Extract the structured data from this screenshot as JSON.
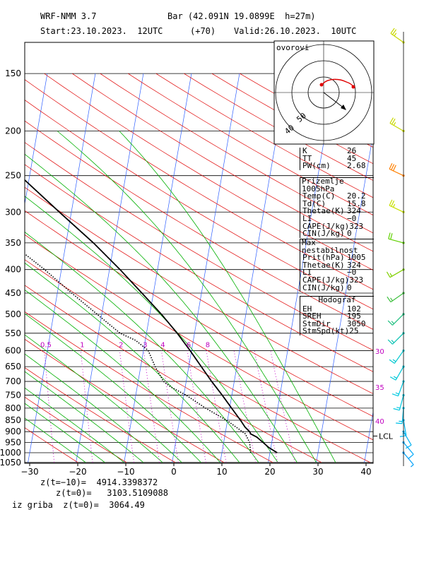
{
  "header": {
    "model": "WRF-NMM 3.7",
    "location": "Bar (42.091N 19.0899E  h=27m)",
    "start": "Start:23.10.2023.  12UTC",
    "lead": "(+70)",
    "valid": "Valid:26.10.2023.  10UTC"
  },
  "footer": {
    "z_m10": "z(t=−10)=  4914.3398372",
    "z_0": "z(t=0)=   3103.5109088",
    "z_grib": "iz griba  z(t=0)=  3064.49"
  },
  "hodograph": {
    "label": "ovorovi",
    "ring_labels": [
      "40",
      "50"
    ]
  },
  "indices": [
    {
      "k": "K",
      "v": "26"
    },
    {
      "k": "TT",
      "v": "45"
    },
    {
      "k": "PW(cm)",
      "v": "2.68"
    }
  ],
  "surface": {
    "title": "Prizemlje 1005hPa",
    "rows": [
      {
        "k": "Temp(C)",
        "v": "20.2"
      },
      {
        "k": "Td(C)",
        "v": "15.8"
      },
      {
        "k": "Thetae(K)",
        "v": "324"
      },
      {
        "k": "LI",
        "v": "−0"
      },
      {
        "k": "CAPE(J/kg)",
        "v": "323"
      },
      {
        "k": "CIN(J/kg)",
        "v": "0"
      }
    ]
  },
  "max_unstable": {
    "title": "Max nestabilnost",
    "rows": [
      {
        "k": "Prit(hPa)",
        "v": "1005"
      },
      {
        "k": "Thetae(K)",
        "v": "324"
      },
      {
        "k": "LI",
        "v": "−0"
      },
      {
        "k": "CAPE(J/kg)",
        "v": "323"
      },
      {
        "k": "CIN(J/kg)",
        "v": "0"
      }
    ]
  },
  "hodograf": {
    "title": "Hodograf",
    "rows": [
      {
        "k": "EH",
        "v": "102"
      },
      {
        "k": "SREH",
        "v": "195"
      },
      {
        "k": "StmDir",
        "v": "3050"
      },
      {
        "k": "StmSpd(kt)",
        "v": "25"
      }
    ]
  },
  "chart_data": {
    "type": "line",
    "subtype": "skew-T log-P diagram",
    "x_ticks": [
      "−30",
      "−20",
      "−10",
      "0",
      "10",
      "20",
      "30",
      "40"
    ],
    "xlim": [
      -30,
      42
    ],
    "y_ticks": [
      "150",
      "200",
      "250",
      "300",
      "350",
      "400",
      "450",
      "500",
      "550",
      "600",
      "650",
      "700",
      "750",
      "800",
      "850",
      "900",
      "950",
      "1000",
      "1050"
    ],
    "ylim": [
      1050,
      150
    ],
    "mixing_ratio_labels": [
      "0.5",
      "1",
      "2",
      "3",
      "4",
      "6",
      "8"
    ],
    "kt_labels": [
      "30",
      "35",
      "40"
    ],
    "lcl_label": "LCL",
    "lcl_p": 920,
    "series": [
      {
        "color": "#000000",
        "style": "solid",
        "points": [
          [
            1000,
            21.5
          ],
          [
            975,
            19.6
          ],
          [
            950,
            18.2
          ],
          [
            925,
            16.7
          ],
          [
            910,
            15.3
          ],
          [
            900,
            15.0
          ],
          [
            880,
            13.9
          ],
          [
            850,
            12.7
          ],
          [
            800,
            10.4
          ],
          [
            750,
            8.0
          ],
          [
            700,
            5.3
          ],
          [
            650,
            2.6
          ],
          [
            600,
            -0.3
          ],
          [
            550,
            -3.6
          ],
          [
            500,
            -7.6
          ],
          [
            450,
            -12.4
          ],
          [
            400,
            -17.8
          ],
          [
            350,
            -24.3
          ],
          [
            300,
            -32.5
          ],
          [
            250,
            -42.0
          ],
          [
            200,
            -52.5
          ],
          [
            150,
            -57.5
          ]
        ]
      },
      {
        "color": "#000000",
        "style": "dotted",
        "points": [
          [
            1000,
            16.0
          ],
          [
            950,
            15.4
          ],
          [
            910,
            14.2
          ],
          [
            900,
            13.5
          ],
          [
            850,
            9.8
          ],
          [
            800,
            5.0
          ],
          [
            750,
            0.5
          ],
          [
            720,
            -3.0
          ],
          [
            700,
            -4.7
          ],
          [
            650,
            -7.0
          ],
          [
            600,
            -9.0
          ],
          [
            570,
            -12.0
          ],
          [
            550,
            -15.5
          ],
          [
            500,
            -21.0
          ],
          [
            450,
            -27.0
          ],
          [
            400,
            -33.5
          ],
          [
            350,
            -41.5
          ],
          [
            300,
            -51.0
          ],
          [
            275,
            -56.0
          ],
          [
            250,
            -62.0
          ],
          [
            200,
            -70.0
          ],
          [
            180,
            -71.0
          ],
          [
            150,
            -73.0
          ]
        ]
      }
    ],
    "wind_barbs": [
      {
        "p": 150,
        "color": "#c8d800",
        "dir": 305,
        "kt": 25
      },
      {
        "p": 200,
        "color": "#c8d800",
        "dir": 300,
        "kt": 25
      },
      {
        "p": 250,
        "color": "#ff8000",
        "dir": 295,
        "kt": 30
      },
      {
        "p": 300,
        "color": "#c8e000",
        "dir": 295,
        "kt": 25
      },
      {
        "p": 350,
        "color": "#60d000",
        "dir": 285,
        "kt": 20
      },
      {
        "p": 400,
        "color": "#80d000",
        "dir": 240,
        "kt": 15
      },
      {
        "p": 450,
        "color": "#40c040",
        "dir": 235,
        "kt": 15
      },
      {
        "p": 500,
        "color": "#20c080",
        "dir": 225,
        "kt": 15
      },
      {
        "p": 550,
        "color": "#00c0b0",
        "dir": 225,
        "kt": 15
      },
      {
        "p": 600,
        "color": "#00c8d0",
        "dir": 215,
        "kt": 15
      },
      {
        "p": 650,
        "color": "#00c8d8",
        "dir": 210,
        "kt": 15
      },
      {
        "p": 700,
        "color": "#00c8e0",
        "dir": 200,
        "kt": 15
      },
      {
        "p": 750,
        "color": "#00c8e0",
        "dir": 195,
        "kt": 15
      },
      {
        "p": 800,
        "color": "#00c0e8",
        "dir": 185,
        "kt": 15
      },
      {
        "p": 850,
        "color": "#00b8f0",
        "dir": 170,
        "kt": 15
      },
      {
        "p": 900,
        "color": "#00b0f0",
        "dir": 150,
        "kt": 10
      },
      {
        "p": 950,
        "color": "#00a8f8",
        "dir": 140,
        "kt": 10
      },
      {
        "p": 1000,
        "color": "#00a0f8",
        "dir": 140,
        "kt": 5
      }
    ]
  }
}
